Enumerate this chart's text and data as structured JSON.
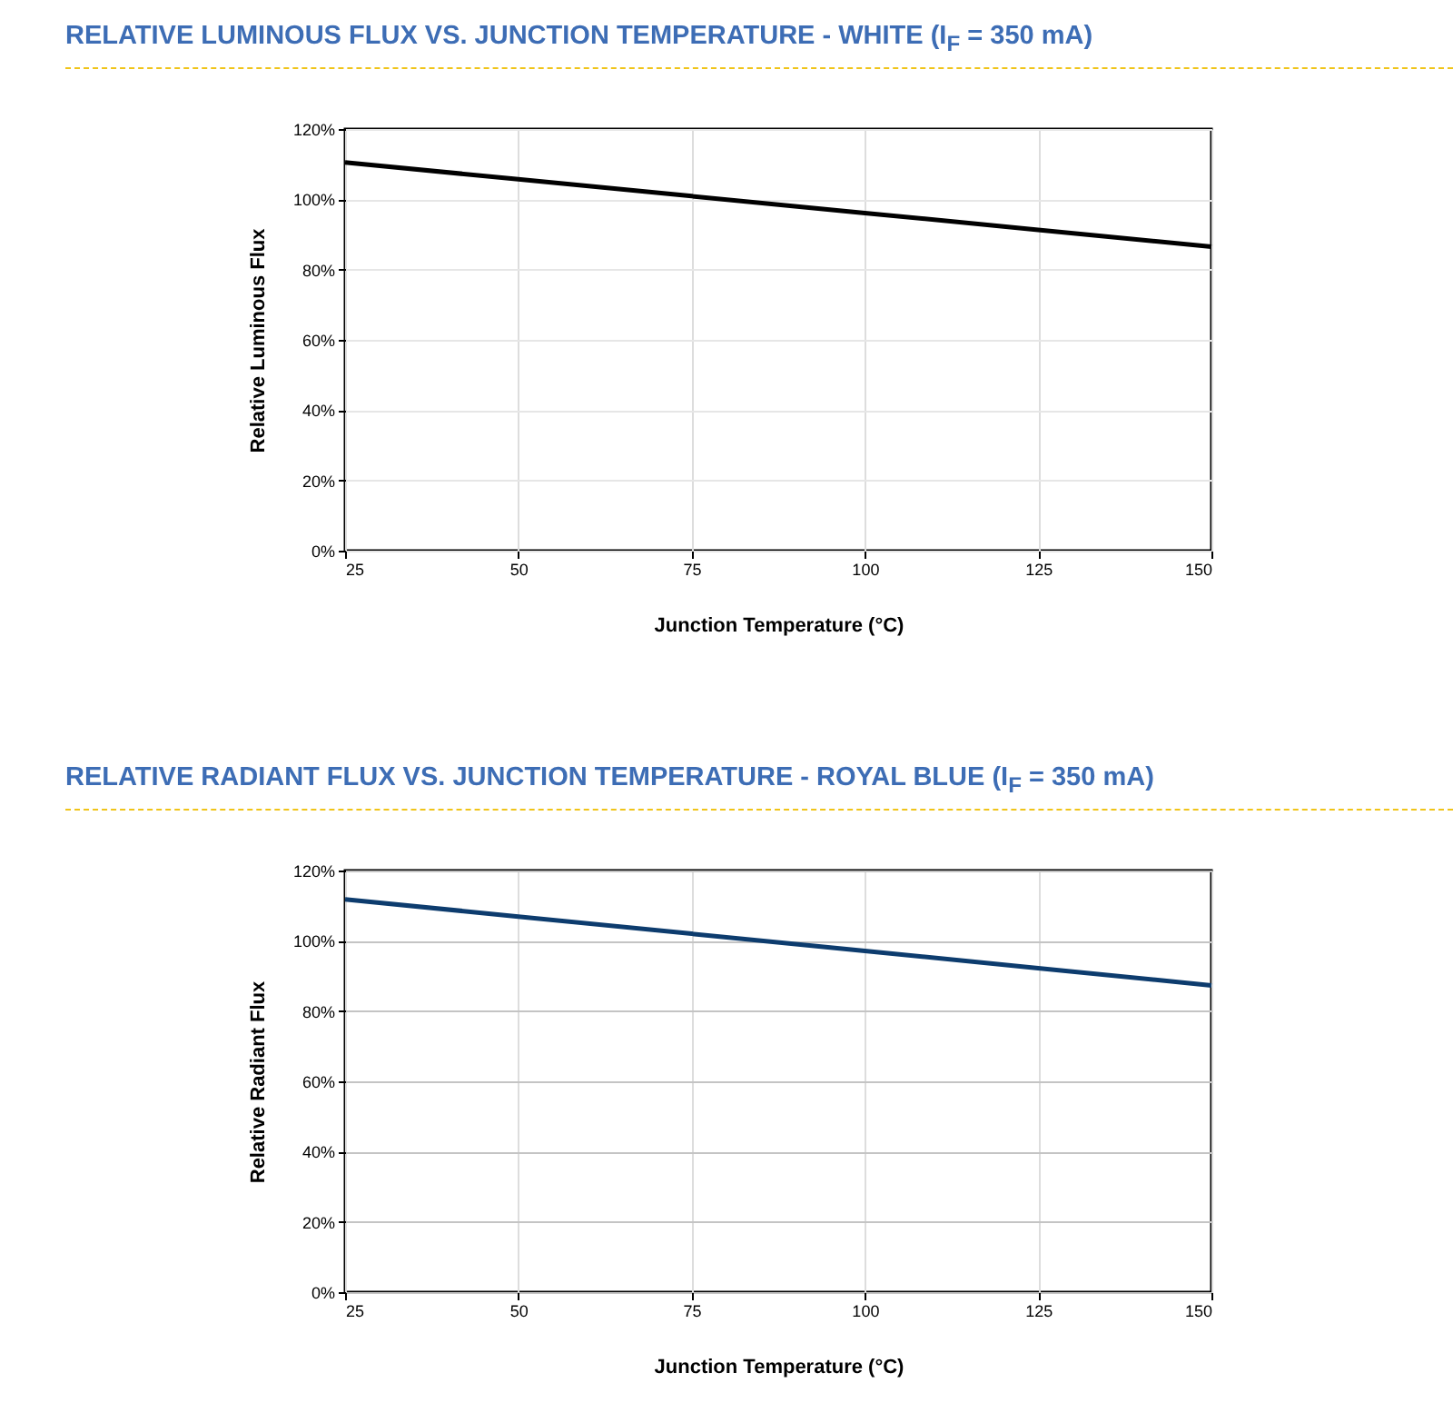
{
  "chart_data": [
    {
      "type": "line",
      "title": "RELATIVE LUMINOUS FLUX VS. JUNCTION TEMPERATURE - WHITE (I$_{F}$ = 350 mA)",
      "xlabel": "Junction Temperature (°C)",
      "ylabel": "Relative Luminous Flux",
      "x": [
        25,
        50,
        75,
        100,
        125,
        150
      ],
      "series": [
        {
          "color": "#000000",
          "values": [
            110.5,
            105.7,
            100.9,
            96.1,
            91.3,
            86.5
          ]
        }
      ],
      "xlim": [
        25,
        150
      ],
      "xticks": [
        25,
        50,
        75,
        100,
        125,
        150
      ],
      "ylim": [
        0,
        120
      ],
      "yticks": [
        {
          "value": 0,
          "label": "0%"
        },
        {
          "value": 20,
          "label": "20%"
        },
        {
          "value": 40,
          "label": "40%"
        },
        {
          "value": 60,
          "label": "60%"
        },
        {
          "value": 80,
          "label": "80%"
        },
        {
          "value": 100,
          "label": "100%"
        },
        {
          "value": 120,
          "label": "120%"
        }
      ],
      "grid": true,
      "line_style": "solid"
    },
    {
      "type": "line",
      "title": "RELATIVE RADIANT FLUX VS. JUNCTION TEMPERATURE - ROYAL BLUE (I$_{F}$ = 350 mA)",
      "xlabel": "Junction Temperature (°C)",
      "ylabel": "Relative Radiant Flux",
      "x": [
        25,
        50,
        75,
        100,
        125,
        150
      ],
      "series": [
        {
          "color": "#0d3c6e",
          "values": [
            111.8,
            106.9,
            102.0,
            97.1,
            92.2,
            87.3
          ]
        }
      ],
      "xlim": [
        25,
        150
      ],
      "xticks": [
        25,
        50,
        75,
        100,
        125,
        150
      ],
      "ylim": [
        0,
        120
      ],
      "yticks": [
        {
          "value": 0,
          "label": "0%"
        },
        {
          "value": 20,
          "label": "20%"
        },
        {
          "value": 40,
          "label": "40%"
        },
        {
          "value": 60,
          "label": "60%"
        },
        {
          "value": 80,
          "label": "80%"
        },
        {
          "value": 100,
          "label": "100%"
        },
        {
          "value": 120,
          "label": "120%"
        }
      ],
      "grid": true,
      "line_style": "solid"
    }
  ]
}
